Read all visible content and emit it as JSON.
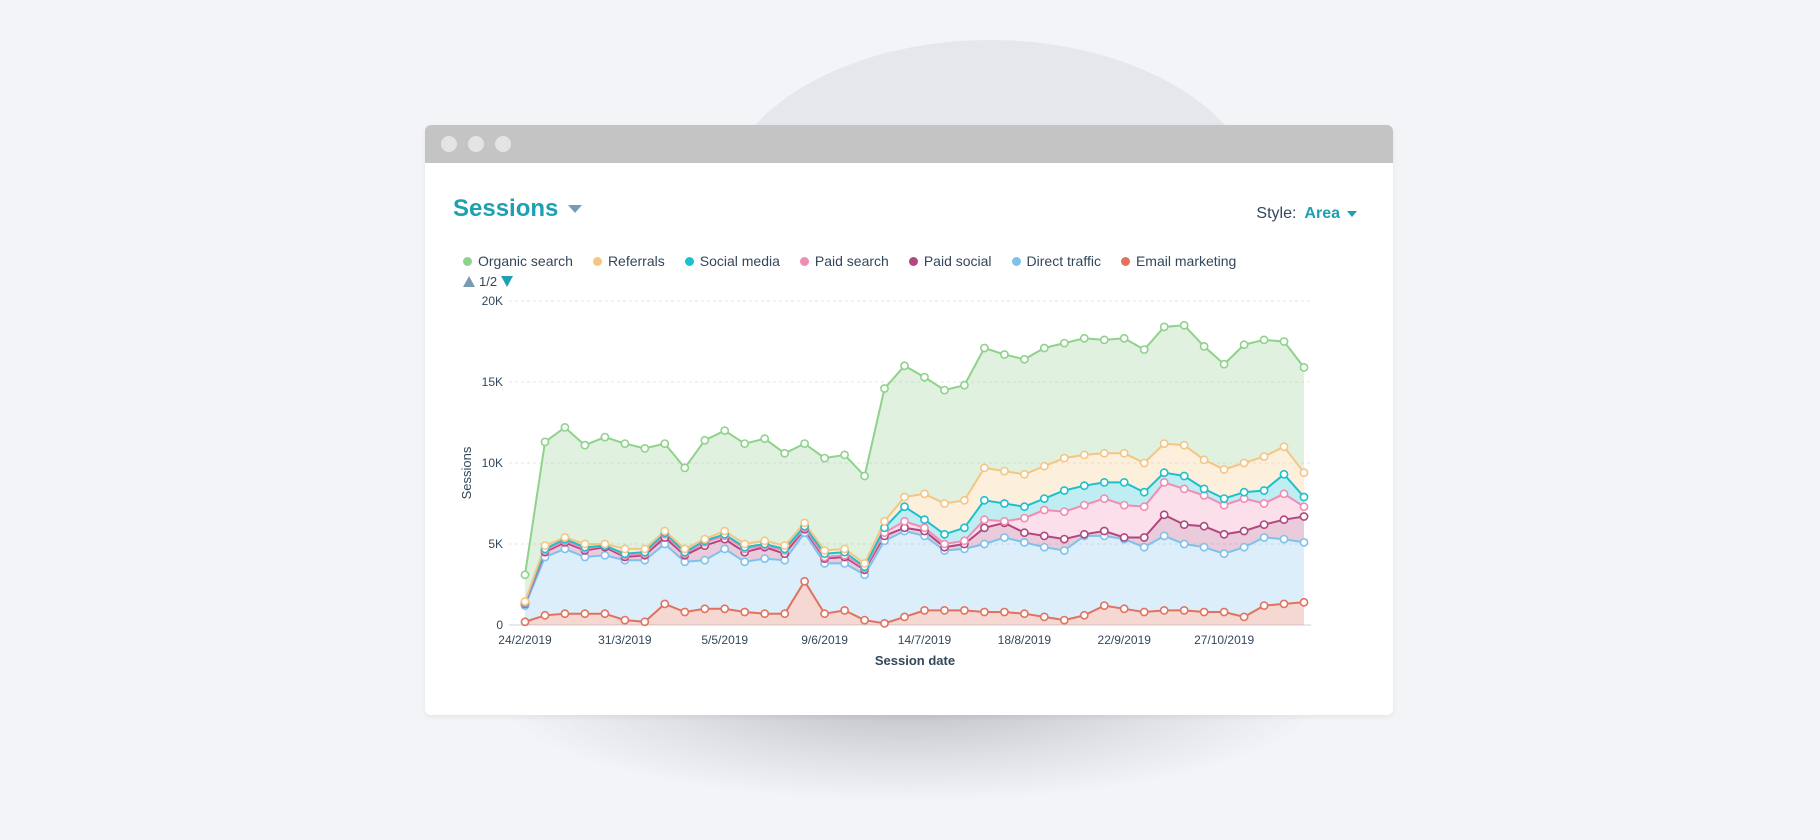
{
  "report": {
    "title": "Sessions"
  },
  "style_control": {
    "label": "Style:",
    "value": "Area"
  },
  "pager": {
    "text": "1/2"
  },
  "colors": {
    "window_bar": "#c4c4c4",
    "accent": "#1e9fb3"
  },
  "chart_data": {
    "type": "area",
    "stacked": true,
    "title": "",
    "xlabel": "Session date",
    "ylabel": "Sessions",
    "ylim": [
      0,
      20000
    ],
    "y_ticks": [
      0,
      5000,
      10000,
      15000,
      20000
    ],
    "y_tick_labels": [
      "0",
      "5K",
      "10K",
      "15K",
      "20K"
    ],
    "x_tick_labels": [
      "24/2/2019",
      "31/3/2019",
      "5/5/2019",
      "9/6/2019",
      "14/7/2019",
      "18/8/2019",
      "22/9/2019",
      "27/10/2019"
    ],
    "x_tick_indices": [
      0,
      5,
      10,
      15,
      20,
      25,
      30,
      35
    ],
    "grid": "horizontal",
    "legend_position": "top-left",
    "x": [
      "24/2/2019",
      "3/3/2019",
      "10/3/2019",
      "17/3/2019",
      "24/3/2019",
      "31/3/2019",
      "7/4/2019",
      "14/4/2019",
      "21/4/2019",
      "28/4/2019",
      "5/5/2019",
      "12/5/2019",
      "19/5/2019",
      "26/5/2019",
      "2/6/2019",
      "9/6/2019",
      "16/6/2019",
      "23/6/2019",
      "30/6/2019",
      "7/7/2019",
      "14/7/2019",
      "21/7/2019",
      "28/7/2019",
      "4/8/2019",
      "11/8/2019",
      "18/8/2019",
      "25/8/2019",
      "1/9/2019",
      "8/9/2019",
      "15/9/2019",
      "22/9/2019",
      "29/9/2019",
      "6/10/2019",
      "13/10/2019",
      "20/10/2019",
      "27/10/2019",
      "3/11/2019",
      "10/11/2019",
      "17/11/2019",
      "24/11/2019"
    ],
    "series": [
      {
        "name": "Email marketing",
        "color": "#e0725f",
        "totals": [
          200,
          600,
          700,
          700,
          700,
          300,
          200,
          1300,
          800,
          1000,
          1000,
          800,
          700,
          700,
          2700,
          700,
          900,
          300,
          100,
          500,
          900,
          900,
          900,
          800,
          800,
          700,
          500,
          300,
          600,
          1200,
          1000,
          800,
          900,
          900,
          800,
          800,
          500,
          1200,
          1300,
          1400
        ]
      },
      {
        "name": "Direct traffic",
        "color": "#7ec1ec",
        "totals": [
          1200,
          4200,
          4700,
          4200,
          4300,
          4000,
          4000,
          5000,
          3900,
          4000,
          4700,
          3900,
          4100,
          4000,
          5700,
          3800,
          3800,
          3100,
          5200,
          5800,
          5500,
          4600,
          4700,
          5000,
          5400,
          5100,
          4800,
          4600,
          5500,
          5500,
          5300,
          4800,
          5500,
          5000,
          4800,
          4400,
          4800,
          5400,
          5300,
          5100
        ]
      },
      {
        "name": "Paid social",
        "color": "#b2467e",
        "totals": [
          1300,
          4500,
          5100,
          4600,
          4800,
          4200,
          4300,
          5400,
          4300,
          4900,
          5300,
          4500,
          4800,
          4400,
          5900,
          4100,
          4200,
          3400,
          5500,
          6000,
          5800,
          4800,
          5000,
          6000,
          6300,
          5700,
          5500,
          5300,
          5600,
          5800,
          5400,
          5400,
          6800,
          6200,
          6100,
          5600,
          5800,
          6200,
          6500,
          6700
        ]
      },
      {
        "name": "Paid search",
        "color": "#ef8db4",
        "totals": [
          1350,
          4600,
          5200,
          4700,
          4900,
          4300,
          4400,
          5600,
          4400,
          5100,
          5500,
          4700,
          4900,
          4600,
          6000,
          4200,
          4300,
          3500,
          5700,
          6400,
          6000,
          5000,
          5200,
          6500,
          6400,
          6600,
          7100,
          7000,
          7400,
          7800,
          7400,
          7300,
          8800,
          8400,
          8000,
          7400,
          7800,
          7500,
          8100,
          7300
        ]
      },
      {
        "name": "Social media",
        "color": "#1dc0cc",
        "totals": [
          1400,
          4700,
          5300,
          4800,
          4900,
          4400,
          4500,
          5700,
          4500,
          5200,
          5600,
          4800,
          5000,
          4700,
          6100,
          4400,
          4500,
          3600,
          6000,
          7300,
          6500,
          5600,
          6000,
          7700,
          7500,
          7300,
          7800,
          8300,
          8600,
          8800,
          8800,
          8200,
          9400,
          9200,
          8400,
          7800,
          8200,
          8300,
          9300,
          7900
        ]
      },
      {
        "name": "Referrals",
        "color": "#f5c583",
        "totals": [
          1450,
          4900,
          5400,
          5000,
          5000,
          4700,
          4700,
          5800,
          4700,
          5300,
          5800,
          5000,
          5200,
          4900,
          6300,
          4600,
          4700,
          3800,
          6400,
          7900,
          8100,
          7500,
          7700,
          9700,
          9500,
          9300,
          9800,
          10300,
          10500,
          10600,
          10600,
          10000,
          11200,
          11100,
          10200,
          9600,
          10000,
          10400,
          11000,
          9400
        ]
      },
      {
        "name": "Organic search",
        "color": "#8fd28b",
        "totals": [
          3100,
          11300,
          12200,
          11100,
          11600,
          11200,
          10900,
          11200,
          9700,
          11400,
          12000,
          11200,
          11500,
          10600,
          11200,
          10300,
          10500,
          9200,
          14600,
          16000,
          15300,
          14500,
          14800,
          17100,
          16700,
          16400,
          17100,
          17400,
          17700,
          17600,
          17700,
          17000,
          18400,
          18500,
          17200,
          16100,
          17300,
          17600,
          17500,
          15900
        ]
      }
    ]
  }
}
